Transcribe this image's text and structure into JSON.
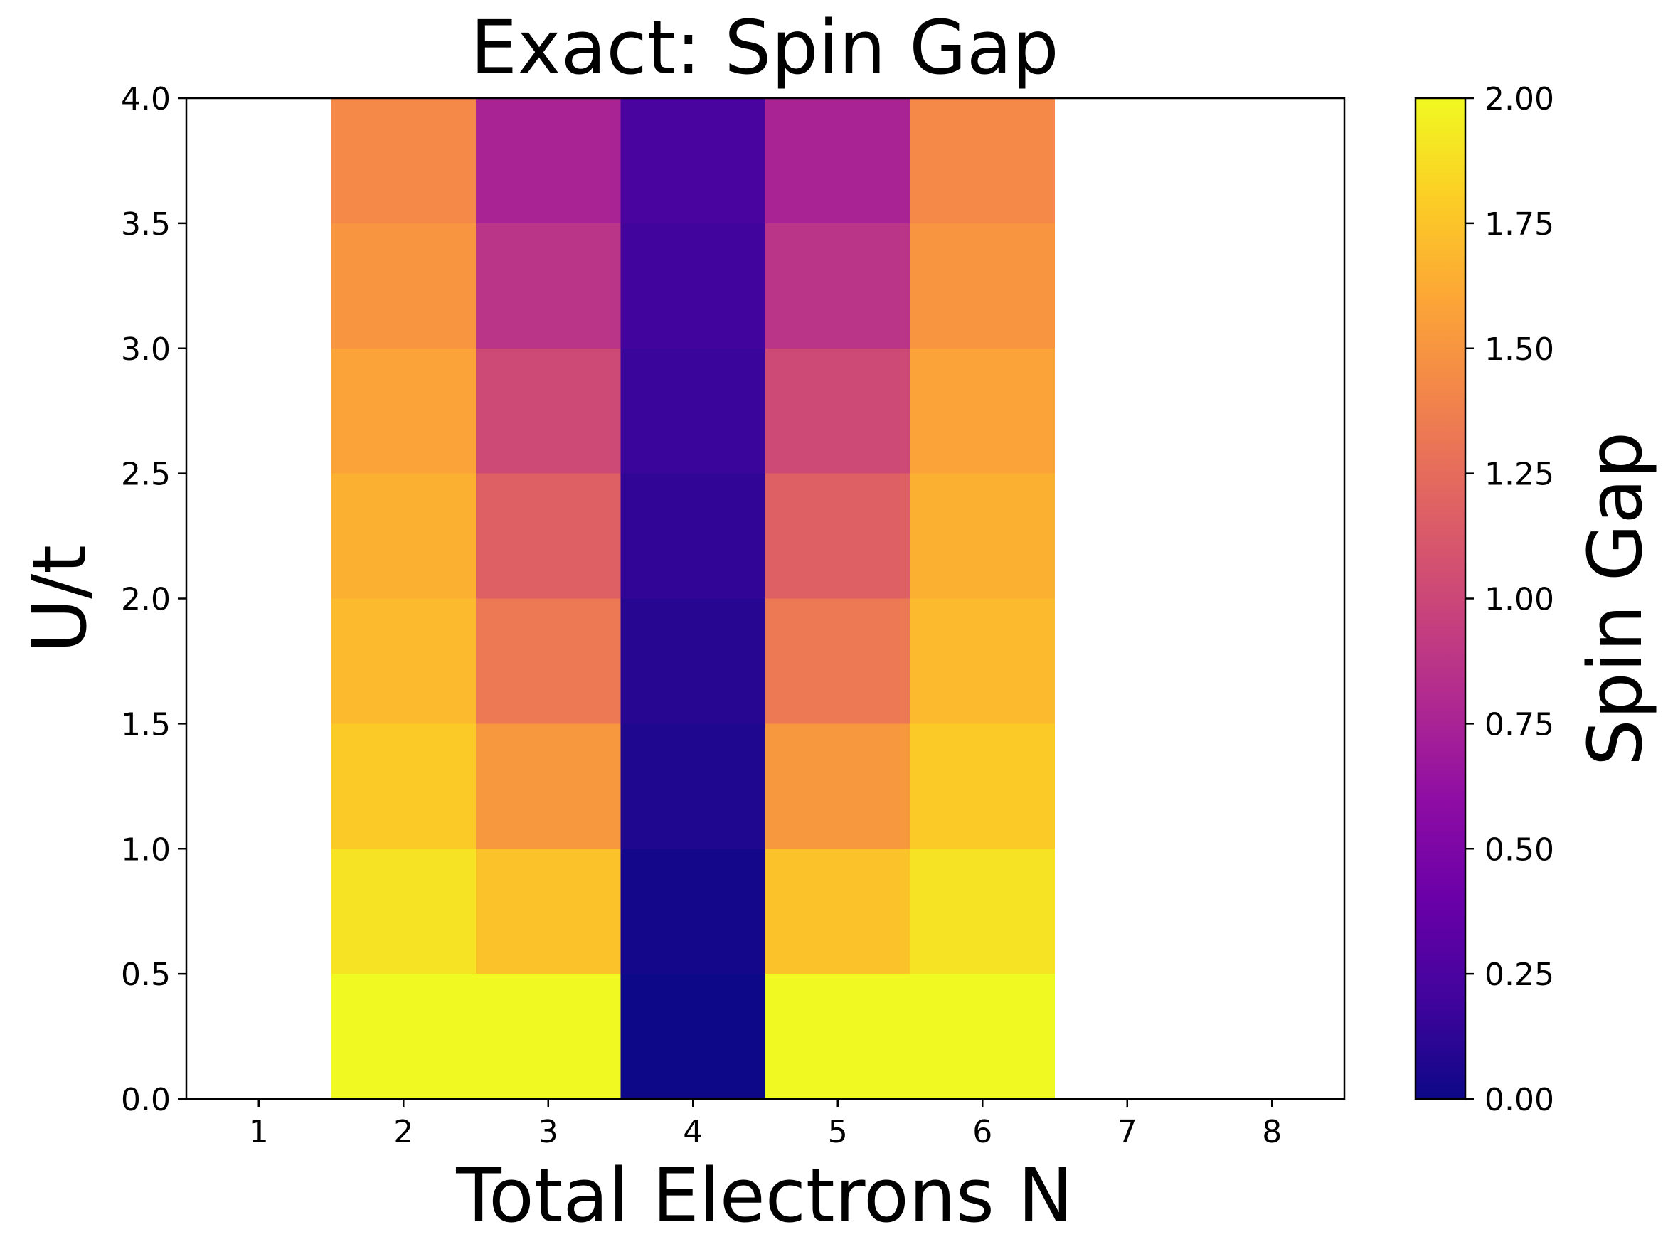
{
  "chart_data": {
    "type": "heatmap",
    "title": "Exact: Spin Gap",
    "xlabel": "Total Electrons N",
    "ylabel": "U/t",
    "colorbar_label": "Spin Gap",
    "colormap": "plasma",
    "x_ticks": [
      "1",
      "2",
      "3",
      "4",
      "5",
      "6",
      "7",
      "8"
    ],
    "y_ticks": [
      "0.0",
      "0.5",
      "1.0",
      "1.5",
      "2.0",
      "2.5",
      "3.0",
      "3.5",
      "4.0"
    ],
    "colorbar_ticks": [
      "0.00",
      "0.25",
      "0.50",
      "0.75",
      "1.00",
      "1.25",
      "1.50",
      "1.75",
      "2.00"
    ],
    "x": [
      1,
      2,
      3,
      4,
      5,
      6,
      7,
      8
    ],
    "y_bins": [
      [
        0.0,
        0.5
      ],
      [
        0.5,
        1.0
      ],
      [
        1.0,
        1.5
      ],
      [
        1.5,
        2.0
      ],
      [
        2.0,
        2.5
      ],
      [
        2.5,
        3.0
      ],
      [
        3.0,
        3.5
      ],
      [
        3.5,
        4.0
      ]
    ],
    "xlim": [
      0.5,
      8.5
    ],
    "ylim": [
      0.0,
      4.0
    ],
    "clim": [
      0.0,
      2.0
    ],
    "grid": false,
    "values": [
      [
        null,
        2.0,
        2.0,
        0.0,
        2.0,
        2.0,
        null,
        null
      ],
      [
        null,
        1.9,
        1.74,
        0.03,
        1.74,
        1.9,
        null,
        null
      ],
      [
        null,
        1.78,
        1.52,
        0.07,
        1.52,
        1.78,
        null,
        null
      ],
      [
        null,
        1.7,
        1.33,
        0.1,
        1.33,
        1.7,
        null,
        null
      ],
      [
        null,
        1.65,
        1.17,
        0.14,
        1.17,
        1.65,
        null,
        null
      ],
      [
        null,
        1.58,
        1.02,
        0.17,
        1.02,
        1.58,
        null,
        null
      ],
      [
        null,
        1.5,
        0.87,
        0.2,
        0.87,
        1.5,
        null,
        null
      ],
      [
        null,
        1.43,
        0.75,
        0.24,
        0.75,
        1.43,
        null,
        null
      ]
    ]
  }
}
